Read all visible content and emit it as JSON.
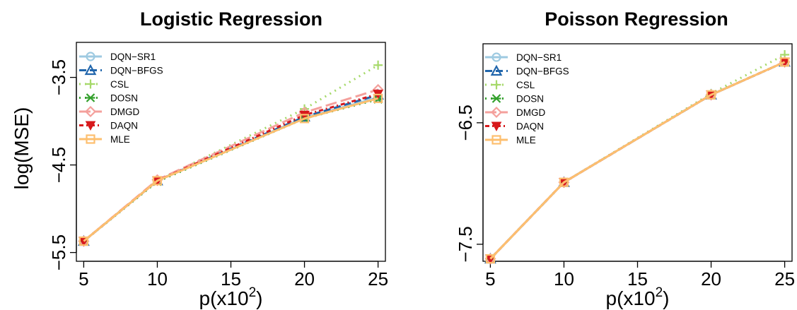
{
  "chart_data": [
    {
      "type": "line",
      "title": "Logistic Regression",
      "xlabel": "p(x10",
      "xlabel_sup": "2",
      "xlabel_close": ")",
      "ylabel": "log(MSE)",
      "x": [
        5,
        10,
        20,
        25
      ],
      "xticks": [
        5,
        10,
        15,
        20,
        25
      ],
      "xtick_labels": [
        "5",
        "10",
        "15",
        "20",
        "25"
      ],
      "xlim": [
        4.5,
        25.5
      ],
      "yticks": [
        -5.5,
        -4.5,
        -3.5
      ],
      "ytick_labels": [
        "−5.5",
        "−4.5",
        "−3.5"
      ],
      "ylim": [
        -5.6,
        -3.1
      ],
      "grid": false,
      "legend": "top-left",
      "series": [
        {
          "name": "DQN−SR1",
          "color": "#9ecae1",
          "dash": "",
          "marker": "circle",
          "values": [
            -5.37,
            -4.68,
            -3.96,
            -3.73
          ]
        },
        {
          "name": "DQN−BFGS",
          "color": "#2166ac",
          "dash": "10,5",
          "marker": "triangle-up",
          "values": [
            -5.37,
            -4.68,
            -3.95,
            -3.7
          ]
        },
        {
          "name": "CSL",
          "color": "#a6d96a",
          "dash": "2,6",
          "marker": "plus",
          "values": [
            -5.37,
            -4.68,
            -3.86,
            -3.36
          ]
        },
        {
          "name": "DOSN",
          "color": "#33a02c",
          "dash": "2,6",
          "marker": "cross",
          "values": [
            -5.37,
            -4.69,
            -3.97,
            -3.75
          ]
        },
        {
          "name": "DMGD",
          "color": "#f4a09c",
          "dash": "16,6",
          "marker": "diamond",
          "values": [
            -5.37,
            -4.67,
            -3.9,
            -3.64
          ]
        },
        {
          "name": "DAQN",
          "color": "#d7191c",
          "dash": "6,4,2,4",
          "marker": "triangle-down",
          "values": [
            -5.37,
            -4.68,
            -3.93,
            -3.69
          ]
        },
        {
          "name": "MLE",
          "color": "#fdbf6f",
          "dash": "",
          "marker": "square",
          "values": [
            -5.37,
            -4.68,
            -3.97,
            -3.74
          ]
        }
      ]
    },
    {
      "type": "line",
      "title": "Poisson Regression",
      "xlabel": "p(x10",
      "xlabel_sup": "2",
      "xlabel_close": ")",
      "ylabel": "",
      "x": [
        5,
        10,
        20,
        25
      ],
      "xticks": [
        5,
        10,
        15,
        20,
        25
      ],
      "xtick_labels": [
        "5",
        "10",
        "15",
        "20",
        "25"
      ],
      "xlim": [
        4.5,
        25.5
      ],
      "yticks": [
        -7.5,
        -6.5
      ],
      "ytick_labels": [
        "−7.5",
        "−6.5"
      ],
      "ylim": [
        -7.64,
        -5.85
      ],
      "grid": false,
      "legend": "top-left",
      "series": [
        {
          "name": "DQN−SR1",
          "color": "#9ecae1",
          "dash": "",
          "marker": "circle",
          "values": [
            -7.62,
            -6.99,
            -6.27,
            -6.0
          ]
        },
        {
          "name": "DQN−BFGS",
          "color": "#2166ac",
          "dash": "10,5",
          "marker": "triangle-up",
          "values": [
            -7.62,
            -6.99,
            -6.27,
            -6.0
          ]
        },
        {
          "name": "CSL",
          "color": "#a6d96a",
          "dash": "2,6",
          "marker": "plus",
          "values": [
            -7.62,
            -6.99,
            -6.26,
            -5.94
          ]
        },
        {
          "name": "DOSN",
          "color": "#33a02c",
          "dash": "2,6",
          "marker": "cross",
          "values": [
            -7.62,
            -6.99,
            -6.27,
            -6.0
          ]
        },
        {
          "name": "DMGD",
          "color": "#f4a09c",
          "dash": "16,6",
          "marker": "diamond",
          "values": [
            -7.62,
            -6.99,
            -6.27,
            -6.0
          ]
        },
        {
          "name": "DAQN",
          "color": "#d7191c",
          "dash": "6,4,2,4",
          "marker": "triangle-down",
          "values": [
            -7.62,
            -6.99,
            -6.27,
            -6.0
          ]
        },
        {
          "name": "MLE",
          "color": "#fdbf6f",
          "dash": "",
          "marker": "square",
          "values": [
            -7.62,
            -6.99,
            -6.27,
            -6.0
          ]
        }
      ]
    }
  ]
}
